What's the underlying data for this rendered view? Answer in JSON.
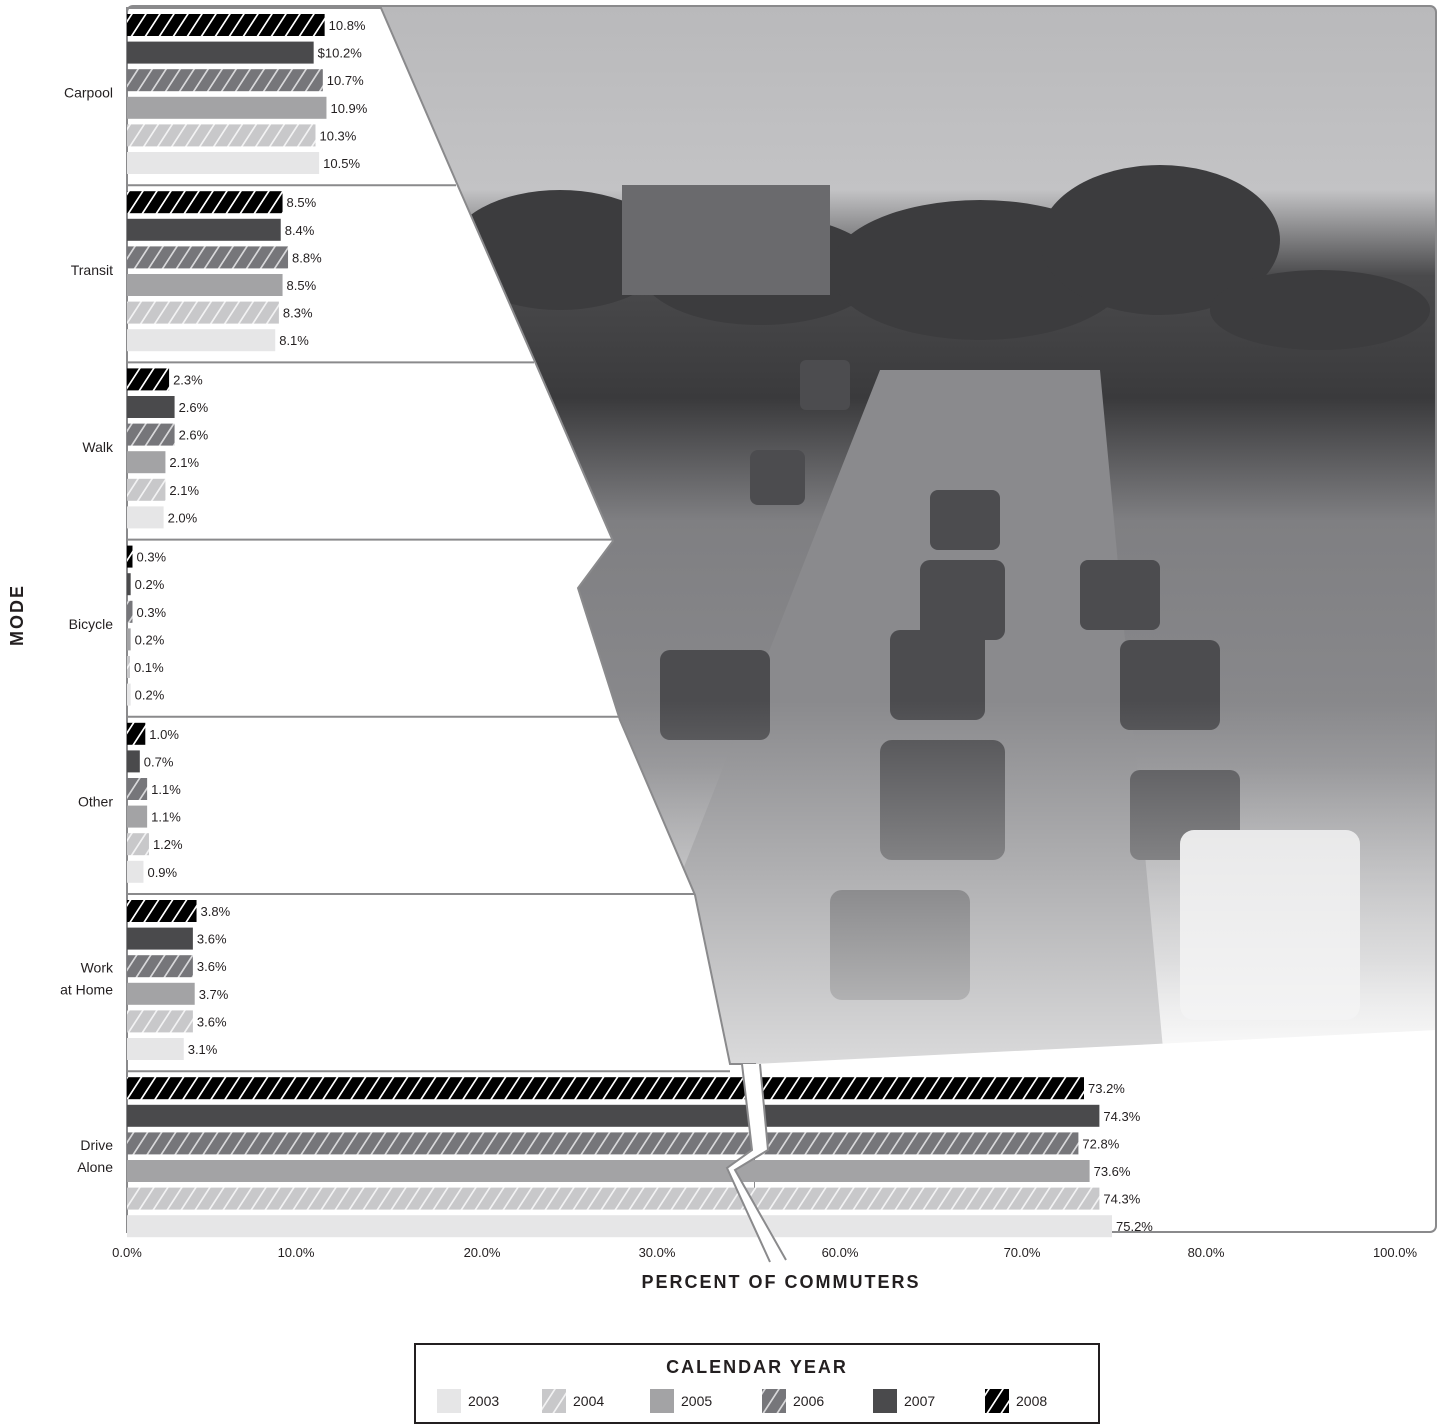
{
  "chart_data": {
    "type": "bar",
    "orientation": "horizontal",
    "xlabel": "PERCENT OF COMMUTERS",
    "ylabel": "MODE",
    "x_ticks": [
      "0.0%",
      "10.0%",
      "20.0%",
      "30.0%",
      "60.0%",
      "70.0%",
      "80.0%",
      "100.0%"
    ],
    "axis_break": "between 30.0% and 60.0%",
    "categories": [
      "Carpool",
      "Transit",
      "Walk",
      "Bicycle",
      "Other",
      "Work at Home",
      "Drive Alone"
    ],
    "category_labels": [
      [
        "Carpool"
      ],
      [
        "Transit"
      ],
      [
        "Walk"
      ],
      [
        "Bicycle"
      ],
      [
        "Other"
      ],
      [
        "Work",
        "at Home"
      ],
      [
        "Drive",
        "Alone"
      ]
    ],
    "legend_title": "CALENDAR YEAR",
    "legend_position": "bottom",
    "series": [
      {
        "name": "2008",
        "fill": "#000000",
        "hatch": true,
        "values": [
          10.8,
          8.5,
          2.3,
          0.3,
          1.0,
          3.8,
          73.2
        ],
        "labels": [
          "10.8%",
          "8.5%",
          "2.3%",
          "0.3%",
          "1.0%",
          "3.8%",
          "73.2%"
        ]
      },
      {
        "name": "2007",
        "fill": "#4a4a4c",
        "hatch": false,
        "values": [
          10.2,
          8.4,
          2.6,
          0.2,
          0.7,
          3.6,
          74.3
        ],
        "labels": [
          "$10.2%",
          "8.4%",
          "2.6%",
          "0.2%",
          "0.7%",
          "3.6%",
          "74.3%"
        ]
      },
      {
        "name": "2006",
        "fill": "#76767a",
        "hatch": true,
        "values": [
          10.7,
          8.8,
          2.6,
          0.3,
          1.1,
          3.6,
          72.8
        ],
        "labels": [
          "10.7%",
          "8.8%",
          "2.6%",
          "0.3%",
          "1.1%",
          "3.6%",
          "72.8%"
        ]
      },
      {
        "name": "2005",
        "fill": "#a3a3a5",
        "hatch": false,
        "values": [
          10.9,
          8.5,
          2.1,
          0.2,
          1.1,
          3.7,
          73.6
        ],
        "labels": [
          "10.9%",
          "8.5%",
          "2.1%",
          "0.2%",
          "1.1%",
          "3.7%",
          "73.6%"
        ]
      },
      {
        "name": "2004",
        "fill": "#c8c8ca",
        "hatch": true,
        "values": [
          10.3,
          8.3,
          2.1,
          0.1,
          1.2,
          3.6,
          74.3
        ],
        "labels": [
          "10.3%",
          "8.3%",
          "2.1%",
          "0.1%",
          "1.2%",
          "3.6%",
          "74.3%"
        ]
      },
      {
        "name": "2003",
        "fill": "#e6e6e7",
        "hatch": false,
        "values": [
          10.5,
          8.1,
          2.0,
          0.2,
          0.9,
          3.1,
          75.2
        ],
        "labels": [
          "10.5%",
          "8.1%",
          "2.0%",
          "0.2%",
          "0.9%",
          "3.1%",
          "75.2%"
        ]
      }
    ],
    "legend_order": [
      "2003",
      "2004",
      "2005",
      "2006",
      "2007",
      "2008"
    ]
  }
}
